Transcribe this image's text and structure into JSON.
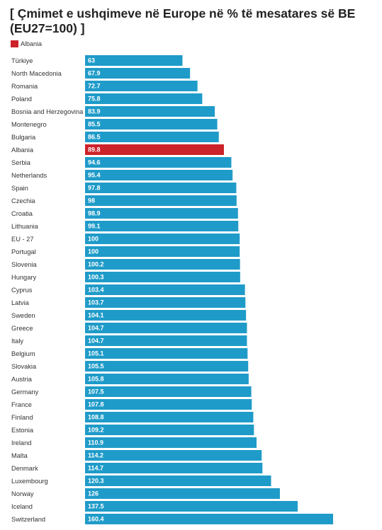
{
  "chart_data": {
    "type": "bar",
    "orientation": "horizontal",
    "title": "[ Çmimet e ushqimeve në Europe në % të mesatares së BE (EU27=100) ]",
    "legend": [
      {
        "name": "Albania",
        "color": "#cc2229"
      }
    ],
    "xlim": [
      0,
      160.4
    ],
    "grid": false,
    "colors": {
      "default": "#1f9bc9",
      "highlight": "#cc2229"
    },
    "highlight": "Albania",
    "categories": [
      "Türkiye",
      "North Macedonia",
      "Romania",
      "Poland",
      "Bosnia and Herzegovina",
      "Montenegro",
      "Bulgaria",
      "Albania",
      "Serbia",
      "Netherlands",
      "Spain",
      "Czechia",
      "Croatia",
      "Lithuania",
      "EU - 27",
      "Portugal",
      "Slovenia",
      "Hungary",
      "Cyprus",
      "Latvia",
      "Sweden",
      "Greece",
      "Italy",
      "Belgium",
      "Slovakia",
      "Austria",
      "Germany",
      "France",
      "Finland",
      "Estonia",
      "Ireland",
      "Malta",
      "Denmark",
      "Luxembourg",
      "Norway",
      "Iceland",
      "Switzerland"
    ],
    "values": [
      63,
      67.9,
      72.7,
      75.8,
      83.9,
      85.5,
      86.5,
      89.8,
      94.6,
      95.4,
      97.8,
      98,
      98.9,
      99.1,
      100,
      100,
      100.2,
      100.3,
      103.4,
      103.7,
      104.1,
      104.7,
      104.7,
      105.1,
      105.5,
      105.8,
      107.5,
      107.8,
      108.8,
      109.2,
      110.9,
      114.2,
      114.7,
      120.3,
      126,
      137.5,
      160.4
    ]
  }
}
